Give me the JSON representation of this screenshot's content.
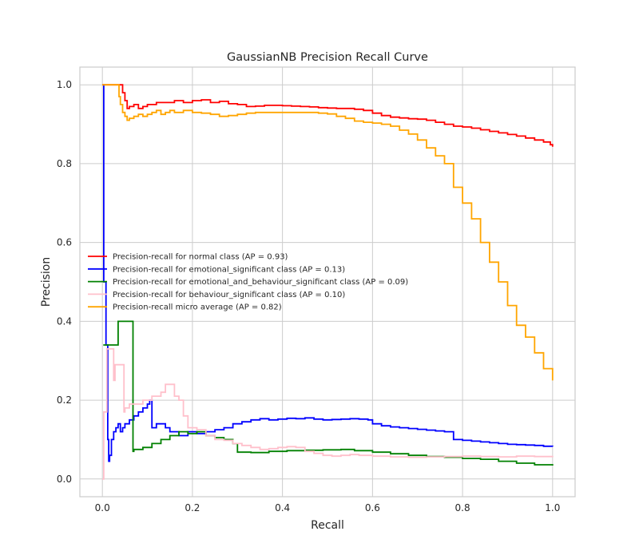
{
  "chart_data": {
    "type": "line",
    "title": "GaussianNB Precision Recall Curve",
    "xlabel": "Recall",
    "ylabel": "Precision",
    "xlim": [
      -0.05,
      1.05
    ],
    "ylim": [
      -0.045,
      1.045
    ],
    "xticks": [
      "0.0",
      "0.2",
      "0.4",
      "0.6",
      "0.8",
      "1.0"
    ],
    "yticks": [
      "0.0",
      "0.2",
      "0.4",
      "0.6",
      "0.8",
      "1.0"
    ],
    "grid": true,
    "legend_position": "center-left",
    "series": [
      {
        "name": "Precision-recall for normal class (AP = 0.93)",
        "color": "#ff0000",
        "points": [
          [
            0.0,
            1.0
          ],
          [
            0.04,
            1.0
          ],
          [
            0.045,
            0.98
          ],
          [
            0.05,
            0.96
          ],
          [
            0.055,
            0.94
          ],
          [
            0.06,
            0.945
          ],
          [
            0.07,
            0.95
          ],
          [
            0.08,
            0.94
          ],
          [
            0.09,
            0.945
          ],
          [
            0.1,
            0.95
          ],
          [
            0.12,
            0.955
          ],
          [
            0.14,
            0.955
          ],
          [
            0.16,
            0.96
          ],
          [
            0.18,
            0.955
          ],
          [
            0.2,
            0.96
          ],
          [
            0.22,
            0.962
          ],
          [
            0.24,
            0.955
          ],
          [
            0.26,
            0.958
          ],
          [
            0.28,
            0.952
          ],
          [
            0.3,
            0.95
          ],
          [
            0.32,
            0.945
          ],
          [
            0.34,
            0.946
          ],
          [
            0.36,
            0.948
          ],
          [
            0.38,
            0.948
          ],
          [
            0.4,
            0.947
          ],
          [
            0.42,
            0.946
          ],
          [
            0.44,
            0.945
          ],
          [
            0.46,
            0.944
          ],
          [
            0.48,
            0.942
          ],
          [
            0.5,
            0.941
          ],
          [
            0.52,
            0.94
          ],
          [
            0.54,
            0.94
          ],
          [
            0.56,
            0.938
          ],
          [
            0.58,
            0.935
          ],
          [
            0.6,
            0.928
          ],
          [
            0.62,
            0.922
          ],
          [
            0.64,
            0.918
          ],
          [
            0.66,
            0.916
          ],
          [
            0.68,
            0.914
          ],
          [
            0.7,
            0.913
          ],
          [
            0.72,
            0.91
          ],
          [
            0.74,
            0.905
          ],
          [
            0.76,
            0.9
          ],
          [
            0.78,
            0.895
          ],
          [
            0.8,
            0.893
          ],
          [
            0.82,
            0.89
          ],
          [
            0.84,
            0.886
          ],
          [
            0.86,
            0.882
          ],
          [
            0.88,
            0.878
          ],
          [
            0.9,
            0.874
          ],
          [
            0.92,
            0.87
          ],
          [
            0.94,
            0.865
          ],
          [
            0.96,
            0.86
          ],
          [
            0.98,
            0.855
          ],
          [
            0.995,
            0.848
          ],
          [
            1.0,
            0.843
          ]
        ]
      },
      {
        "name": "Precision-recall for emotional_significant class (AP = 0.13)",
        "color": "#0000ff",
        "points": [
          [
            0.002,
            1.0
          ],
          [
            0.003,
            0.5
          ],
          [
            0.006,
            0.5
          ],
          [
            0.008,
            0.34
          ],
          [
            0.01,
            0.34
          ],
          [
            0.012,
            0.1
          ],
          [
            0.014,
            0.045
          ],
          [
            0.016,
            0.06
          ],
          [
            0.02,
            0.1
          ],
          [
            0.025,
            0.12
          ],
          [
            0.03,
            0.13
          ],
          [
            0.035,
            0.14
          ],
          [
            0.04,
            0.12
          ],
          [
            0.045,
            0.13
          ],
          [
            0.05,
            0.14
          ],
          [
            0.06,
            0.15
          ],
          [
            0.07,
            0.16
          ],
          [
            0.08,
            0.17
          ],
          [
            0.09,
            0.18
          ],
          [
            0.1,
            0.19
          ],
          [
            0.105,
            0.2
          ],
          [
            0.11,
            0.13
          ],
          [
            0.12,
            0.14
          ],
          [
            0.13,
            0.14
          ],
          [
            0.14,
            0.13
          ],
          [
            0.15,
            0.12
          ],
          [
            0.17,
            0.11
          ],
          [
            0.19,
            0.12
          ],
          [
            0.21,
            0.115
          ],
          [
            0.23,
            0.12
          ],
          [
            0.25,
            0.125
          ],
          [
            0.27,
            0.13
          ],
          [
            0.29,
            0.14
          ],
          [
            0.31,
            0.145
          ],
          [
            0.33,
            0.15
          ],
          [
            0.35,
            0.153
          ],
          [
            0.37,
            0.15
          ],
          [
            0.39,
            0.152
          ],
          [
            0.41,
            0.154
          ],
          [
            0.43,
            0.153
          ],
          [
            0.45,
            0.155
          ],
          [
            0.47,
            0.152
          ],
          [
            0.49,
            0.15
          ],
          [
            0.51,
            0.151
          ],
          [
            0.53,
            0.152
          ],
          [
            0.55,
            0.153
          ],
          [
            0.57,
            0.152
          ],
          [
            0.59,
            0.15
          ],
          [
            0.6,
            0.14
          ],
          [
            0.62,
            0.135
          ],
          [
            0.64,
            0.132
          ],
          [
            0.66,
            0.13
          ],
          [
            0.68,
            0.128
          ],
          [
            0.7,
            0.126
          ],
          [
            0.72,
            0.124
          ],
          [
            0.74,
            0.122
          ],
          [
            0.76,
            0.12
          ],
          [
            0.78,
            0.1
          ],
          [
            0.8,
            0.098
          ],
          [
            0.82,
            0.096
          ],
          [
            0.84,
            0.094
          ],
          [
            0.86,
            0.092
          ],
          [
            0.88,
            0.09
          ],
          [
            0.9,
            0.088
          ],
          [
            0.92,
            0.087
          ],
          [
            0.94,
            0.086
          ],
          [
            0.96,
            0.085
          ],
          [
            0.98,
            0.083
          ],
          [
            1.0,
            0.082
          ]
        ]
      },
      {
        "name": "Precision-recall for emotional_and_behaviour_significant class (AP = 0.09)",
        "color": "#008000",
        "points": [
          [
            0.002,
            0.34
          ],
          [
            0.006,
            0.34
          ],
          [
            0.033,
            0.34
          ],
          [
            0.035,
            0.4
          ],
          [
            0.065,
            0.4
          ],
          [
            0.068,
            0.07
          ],
          [
            0.07,
            0.075
          ],
          [
            0.09,
            0.08
          ],
          [
            0.11,
            0.09
          ],
          [
            0.13,
            0.1
          ],
          [
            0.15,
            0.11
          ],
          [
            0.17,
            0.12
          ],
          [
            0.19,
            0.115
          ],
          [
            0.21,
            0.12
          ],
          [
            0.23,
            0.11
          ],
          [
            0.25,
            0.105
          ],
          [
            0.27,
            0.1
          ],
          [
            0.29,
            0.09
          ],
          [
            0.3,
            0.068
          ],
          [
            0.33,
            0.067
          ],
          [
            0.37,
            0.07
          ],
          [
            0.41,
            0.072
          ],
          [
            0.45,
            0.073
          ],
          [
            0.49,
            0.074
          ],
          [
            0.53,
            0.075
          ],
          [
            0.56,
            0.072
          ],
          [
            0.6,
            0.068
          ],
          [
            0.64,
            0.064
          ],
          [
            0.68,
            0.06
          ],
          [
            0.72,
            0.057
          ],
          [
            0.76,
            0.055
          ],
          [
            0.8,
            0.052
          ],
          [
            0.84,
            0.05
          ],
          [
            0.88,
            0.045
          ],
          [
            0.92,
            0.04
          ],
          [
            0.96,
            0.036
          ],
          [
            1.0,
            0.034
          ]
        ]
      },
      {
        "name": "Precision-recall for behaviour_significant class (AP = 0.10)",
        "color": "#ffc0cb",
        "points": [
          [
            0.0,
            0.0
          ],
          [
            0.003,
            0.17
          ],
          [
            0.006,
            0.17
          ],
          [
            0.01,
            0.33
          ],
          [
            0.013,
            0.33
          ],
          [
            0.025,
            0.25
          ],
          [
            0.028,
            0.29
          ],
          [
            0.045,
            0.29
          ],
          [
            0.048,
            0.17
          ],
          [
            0.05,
            0.18
          ],
          [
            0.06,
            0.19
          ],
          [
            0.07,
            0.19
          ],
          [
            0.09,
            0.2
          ],
          [
            0.11,
            0.21
          ],
          [
            0.13,
            0.22
          ],
          [
            0.14,
            0.24
          ],
          [
            0.155,
            0.24
          ],
          [
            0.16,
            0.21
          ],
          [
            0.17,
            0.2
          ],
          [
            0.18,
            0.16
          ],
          [
            0.19,
            0.13
          ],
          [
            0.21,
            0.125
          ],
          [
            0.23,
            0.11
          ],
          [
            0.25,
            0.1
          ],
          [
            0.27,
            0.098
          ],
          [
            0.29,
            0.09
          ],
          [
            0.31,
            0.085
          ],
          [
            0.33,
            0.08
          ],
          [
            0.35,
            0.075
          ],
          [
            0.37,
            0.077
          ],
          [
            0.39,
            0.08
          ],
          [
            0.41,
            0.082
          ],
          [
            0.43,
            0.08
          ],
          [
            0.45,
            0.07
          ],
          [
            0.47,
            0.065
          ],
          [
            0.49,
            0.06
          ],
          [
            0.51,
            0.058
          ],
          [
            0.53,
            0.06
          ],
          [
            0.55,
            0.062
          ],
          [
            0.57,
            0.06
          ],
          [
            0.6,
            0.058
          ],
          [
            0.64,
            0.056
          ],
          [
            0.68,
            0.055
          ],
          [
            0.72,
            0.056
          ],
          [
            0.76,
            0.057
          ],
          [
            0.8,
            0.058
          ],
          [
            0.84,
            0.057
          ],
          [
            0.88,
            0.056
          ],
          [
            0.92,
            0.058
          ],
          [
            0.96,
            0.057
          ],
          [
            1.0,
            0.055
          ]
        ]
      },
      {
        "name": "Precision-recall micro average (AP = 0.82)",
        "color": "#ffa500",
        "points": [
          [
            0.0,
            1.0
          ],
          [
            0.035,
            1.0
          ],
          [
            0.037,
            0.97
          ],
          [
            0.04,
            0.95
          ],
          [
            0.045,
            0.93
          ],
          [
            0.05,
            0.92
          ],
          [
            0.055,
            0.91
          ],
          [
            0.06,
            0.915
          ],
          [
            0.07,
            0.92
          ],
          [
            0.08,
            0.925
          ],
          [
            0.09,
            0.92
          ],
          [
            0.1,
            0.925
          ],
          [
            0.11,
            0.93
          ],
          [
            0.12,
            0.935
          ],
          [
            0.13,
            0.925
          ],
          [
            0.14,
            0.93
          ],
          [
            0.15,
            0.935
          ],
          [
            0.16,
            0.93
          ],
          [
            0.18,
            0.935
          ],
          [
            0.2,
            0.93
          ],
          [
            0.22,
            0.928
          ],
          [
            0.24,
            0.925
          ],
          [
            0.26,
            0.92
          ],
          [
            0.28,
            0.922
          ],
          [
            0.3,
            0.925
          ],
          [
            0.32,
            0.928
          ],
          [
            0.34,
            0.93
          ],
          [
            0.36,
            0.93
          ],
          [
            0.38,
            0.93
          ],
          [
            0.4,
            0.93
          ],
          [
            0.42,
            0.93
          ],
          [
            0.44,
            0.93
          ],
          [
            0.46,
            0.93
          ],
          [
            0.48,
            0.928
          ],
          [
            0.5,
            0.926
          ],
          [
            0.52,
            0.92
          ],
          [
            0.54,
            0.915
          ],
          [
            0.56,
            0.908
          ],
          [
            0.58,
            0.905
          ],
          [
            0.6,
            0.903
          ],
          [
            0.62,
            0.9
          ],
          [
            0.64,
            0.895
          ],
          [
            0.66,
            0.885
          ],
          [
            0.68,
            0.875
          ],
          [
            0.7,
            0.86
          ],
          [
            0.72,
            0.84
          ],
          [
            0.74,
            0.82
          ],
          [
            0.76,
            0.8
          ],
          [
            0.78,
            0.74
          ],
          [
            0.8,
            0.7
          ],
          [
            0.82,
            0.66
          ],
          [
            0.84,
            0.6
          ],
          [
            0.86,
            0.55
          ],
          [
            0.88,
            0.5
          ],
          [
            0.9,
            0.44
          ],
          [
            0.92,
            0.39
          ],
          [
            0.94,
            0.36
          ],
          [
            0.96,
            0.32
          ],
          [
            0.98,
            0.28
          ],
          [
            1.0,
            0.25
          ]
        ]
      }
    ]
  }
}
